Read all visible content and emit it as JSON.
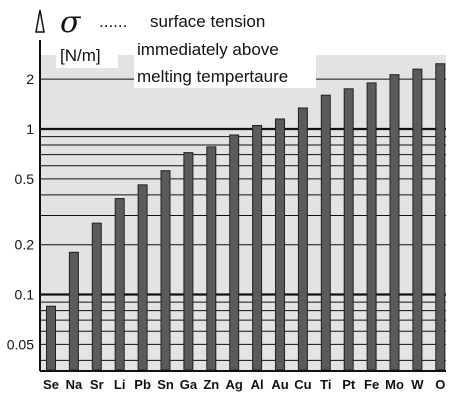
{
  "chart_data": {
    "type": "bar",
    "y_symbol": "σ",
    "y_unit": "[N/m]",
    "legend_marker": "......",
    "annotation": [
      "surface tension",
      "immediately above",
      "melting tempertaure"
    ],
    "scale": "log",
    "ylim": [
      0.035,
      2.8
    ],
    "yticks": [
      0.05,
      0.1,
      0.2,
      0.5,
      1,
      2
    ],
    "ytick_labels": [
      "0.05",
      "0.1",
      "0.2",
      "0.5",
      "1",
      "2"
    ],
    "grid": true,
    "categories": [
      "Se",
      "Na",
      "Sr",
      "Li",
      "Pb",
      "Sn",
      "Ga",
      "Zn",
      "Ag",
      "Al",
      "Au",
      "Cu",
      "Ti",
      "Pt",
      "Fe",
      "Mo",
      "W",
      "O"
    ],
    "values": [
      0.085,
      0.18,
      0.27,
      0.38,
      0.46,
      0.56,
      0.72,
      0.78,
      0.92,
      1.05,
      1.15,
      1.34,
      1.6,
      1.75,
      1.9,
      2.13,
      2.3,
      2.48
    ]
  }
}
